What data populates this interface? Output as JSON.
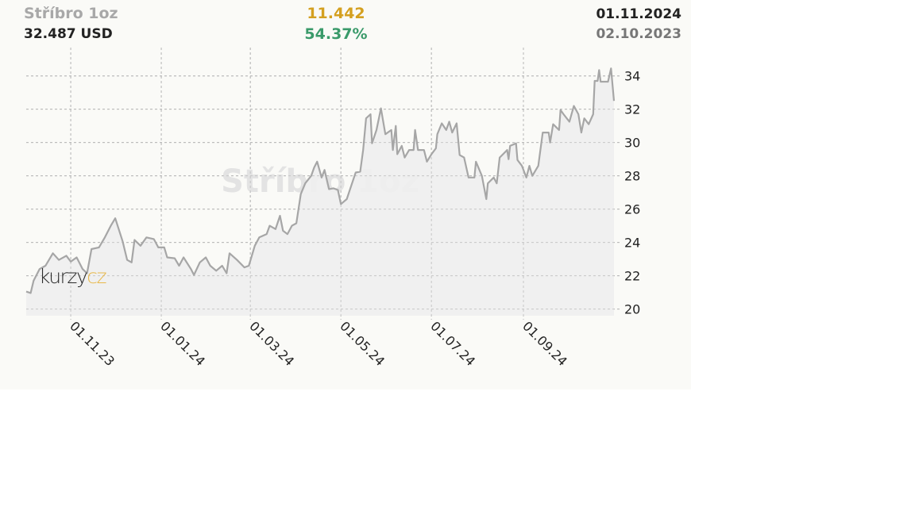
{
  "header": {
    "title": "Stříbro 1oz",
    "price": "32.487 USD",
    "change": "11.442",
    "change_pct": "54.37%",
    "date_end": "01.11.2024",
    "date_start": "02.10.2023"
  },
  "watermark": "Stříbro 1oz",
  "logo": {
    "part1": "kurzy",
    "part2": "cz"
  },
  "colors": {
    "title": "#a8a8a8",
    "change": "#d4a020",
    "change_pct": "#3a9a6a",
    "line": "#a6a6a6",
    "fill": "#eeeeee",
    "grid": "#b8b8b8",
    "background": "#fafaf7",
    "logo_accent": "#e8b84a"
  },
  "chart_data": {
    "type": "area",
    "title": "Stříbro 1oz",
    "ylabel": "",
    "xlabel": "",
    "ylim": [
      19.6,
      35.7
    ],
    "xlim": [
      "2023-10-02",
      "2024-11-01"
    ],
    "grid": true,
    "yticks": [
      20,
      22,
      24,
      26,
      28,
      30,
      32,
      34
    ],
    "xticks": [
      {
        "date": "2023-11-01",
        "label": "01.11.23"
      },
      {
        "date": "2024-01-01",
        "label": "01.01.24"
      },
      {
        "date": "2024-03-01",
        "label": "01.03.24"
      },
      {
        "date": "2024-05-01",
        "label": "01.05.24"
      },
      {
        "date": "2024-07-01",
        "label": "01.07.24"
      },
      {
        "date": "2024-09-01",
        "label": "01.09.24"
      }
    ],
    "yaxis_position": "right",
    "series": [
      {
        "points": [
          [
            "2023-10-02",
            21.05
          ],
          [
            "2023-10-05",
            20.96
          ],
          [
            "2023-10-07",
            21.7
          ],
          [
            "2023-10-11",
            22.4
          ],
          [
            "2023-10-15",
            22.6
          ],
          [
            "2023-10-20",
            23.35
          ],
          [
            "2023-10-24",
            22.95
          ],
          [
            "2023-10-29",
            23.2
          ],
          [
            "2023-11-01",
            22.85
          ],
          [
            "2023-11-05",
            23.1
          ],
          [
            "2023-11-09",
            22.4
          ],
          [
            "2023-11-12",
            22.15
          ],
          [
            "2023-11-15",
            23.6
          ],
          [
            "2023-11-20",
            23.7
          ],
          [
            "2023-11-24",
            24.3
          ],
          [
            "2023-11-28",
            25.0
          ],
          [
            "2023-12-01",
            25.45
          ],
          [
            "2023-12-06",
            24.05
          ],
          [
            "2023-12-09",
            22.95
          ],
          [
            "2023-12-12",
            22.8
          ],
          [
            "2023-12-14",
            24.15
          ],
          [
            "2023-12-18",
            23.8
          ],
          [
            "2023-12-22",
            24.3
          ],
          [
            "2023-12-27",
            24.2
          ],
          [
            "2023-12-30",
            23.7
          ],
          [
            "2024-01-03",
            23.7
          ],
          [
            "2024-01-05",
            23.1
          ],
          [
            "2024-01-10",
            23.05
          ],
          [
            "2024-01-13",
            22.6
          ],
          [
            "2024-01-16",
            23.1
          ],
          [
            "2024-01-21",
            22.4
          ],
          [
            "2024-01-23",
            22.05
          ],
          [
            "2024-01-27",
            22.8
          ],
          [
            "2024-01-31",
            23.1
          ],
          [
            "2024-02-03",
            22.6
          ],
          [
            "2024-02-07",
            22.3
          ],
          [
            "2024-02-11",
            22.6
          ],
          [
            "2024-02-14",
            22.15
          ],
          [
            "2024-02-16",
            23.35
          ],
          [
            "2024-02-21",
            22.95
          ],
          [
            "2024-02-26",
            22.5
          ],
          [
            "2024-02-29",
            22.6
          ],
          [
            "2024-03-04",
            23.8
          ],
          [
            "2024-03-07",
            24.3
          ],
          [
            "2024-03-12",
            24.5
          ],
          [
            "2024-03-14",
            25.0
          ],
          [
            "2024-03-18",
            24.8
          ],
          [
            "2024-03-21",
            25.6
          ],
          [
            "2024-03-23",
            24.7
          ],
          [
            "2024-03-26",
            24.5
          ],
          [
            "2024-03-29",
            25.0
          ],
          [
            "2024-04-01",
            25.15
          ],
          [
            "2024-04-04",
            26.9
          ],
          [
            "2024-04-07",
            27.55
          ],
          [
            "2024-04-11",
            28.0
          ],
          [
            "2024-04-13",
            28.5
          ],
          [
            "2024-04-15",
            28.85
          ],
          [
            "2024-04-18",
            27.9
          ],
          [
            "2024-04-20",
            28.35
          ],
          [
            "2024-04-23",
            27.2
          ],
          [
            "2024-04-26",
            27.25
          ],
          [
            "2024-04-29",
            27.15
          ],
          [
            "2024-05-01",
            26.3
          ],
          [
            "2024-05-05",
            26.6
          ],
          [
            "2024-05-08",
            27.4
          ],
          [
            "2024-05-11",
            28.2
          ],
          [
            "2024-05-14",
            28.25
          ],
          [
            "2024-05-16",
            29.55
          ],
          [
            "2024-05-18",
            31.45
          ],
          [
            "2024-05-21",
            31.7
          ],
          [
            "2024-05-22",
            29.95
          ],
          [
            "2024-05-25",
            30.75
          ],
          [
            "2024-05-28",
            32.05
          ],
          [
            "2024-05-31",
            30.5
          ],
          [
            "2024-06-04",
            30.75
          ],
          [
            "2024-06-05",
            29.55
          ],
          [
            "2024-06-07",
            31.0
          ],
          [
            "2024-06-08",
            29.3
          ],
          [
            "2024-06-11",
            29.8
          ],
          [
            "2024-06-13",
            29.1
          ],
          [
            "2024-06-16",
            29.55
          ],
          [
            "2024-06-19",
            29.55
          ],
          [
            "2024-06-20",
            30.75
          ],
          [
            "2024-06-22",
            29.55
          ],
          [
            "2024-06-26",
            29.55
          ],
          [
            "2024-06-28",
            28.85
          ],
          [
            "2024-07-01",
            29.3
          ],
          [
            "2024-07-04",
            29.65
          ],
          [
            "2024-07-05",
            30.5
          ],
          [
            "2024-07-08",
            31.15
          ],
          [
            "2024-07-11",
            30.75
          ],
          [
            "2024-07-13",
            31.25
          ],
          [
            "2024-07-15",
            30.6
          ],
          [
            "2024-07-18",
            31.15
          ],
          [
            "2024-07-20",
            29.25
          ],
          [
            "2024-07-23",
            29.1
          ],
          [
            "2024-07-26",
            27.9
          ],
          [
            "2024-07-30",
            27.9
          ],
          [
            "2024-07-31",
            28.85
          ],
          [
            "2024-08-04",
            28.0
          ],
          [
            "2024-08-07",
            26.6
          ],
          [
            "2024-08-08",
            27.55
          ],
          [
            "2024-08-12",
            27.9
          ],
          [
            "2024-08-14",
            27.55
          ],
          [
            "2024-08-16",
            29.1
          ],
          [
            "2024-08-21",
            29.55
          ],
          [
            "2024-08-22",
            29.0
          ],
          [
            "2024-08-23",
            29.8
          ],
          [
            "2024-08-27",
            29.95
          ],
          [
            "2024-08-28",
            28.95
          ],
          [
            "2024-08-31",
            28.6
          ],
          [
            "2024-09-03",
            27.9
          ],
          [
            "2024-09-05",
            28.6
          ],
          [
            "2024-09-07",
            28.0
          ],
          [
            "2024-09-11",
            28.6
          ],
          [
            "2024-09-14",
            30.6
          ],
          [
            "2024-09-18",
            30.6
          ],
          [
            "2024-09-19",
            30.0
          ],
          [
            "2024-09-21",
            31.1
          ],
          [
            "2024-09-25",
            30.75
          ],
          [
            "2024-09-26",
            31.95
          ],
          [
            "2024-09-28",
            31.7
          ],
          [
            "2024-10-02",
            31.25
          ],
          [
            "2024-10-05",
            32.2
          ],
          [
            "2024-10-08",
            31.7
          ],
          [
            "2024-10-10",
            30.6
          ],
          [
            "2024-10-12",
            31.45
          ],
          [
            "2024-10-15",
            31.1
          ],
          [
            "2024-10-18",
            31.7
          ],
          [
            "2024-10-19",
            33.7
          ],
          [
            "2024-10-21",
            33.7
          ],
          [
            "2024-10-22",
            34.35
          ],
          [
            "2024-10-23",
            33.65
          ],
          [
            "2024-10-28",
            33.65
          ],
          [
            "2024-10-30",
            34.45
          ],
          [
            "2024-11-01",
            32.5
          ]
        ]
      }
    ]
  }
}
